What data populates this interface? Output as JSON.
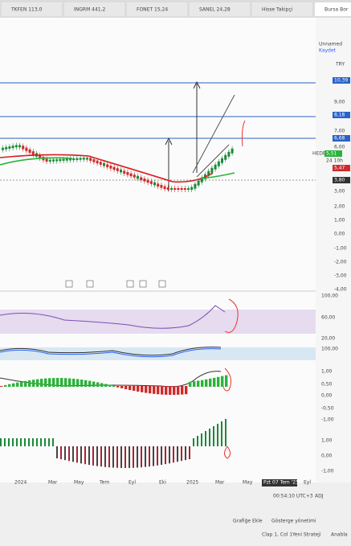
{
  "tabs": [
    "TKFEN 113,0",
    "INGRM 441,2",
    "FONET 15,24",
    "SANEL 24,28",
    "Hisse Takipçi",
    "Bursa Bor"
  ],
  "header": {
    "layout": "Unnamed",
    "save": "Kaydet",
    "currency": "TRY"
  },
  "price_axis": [
    "10,39",
    "9,00",
    "8,18",
    "7,00",
    "6,68",
    "6,00",
    "HEDEF",
    "5,51",
    "24 10h",
    "5,47",
    "3,80",
    "3,00",
    "2,00",
    "1,00",
    "0,00",
    "-1,00",
    "-2,00",
    "-3,00",
    "-4,00"
  ],
  "indicator_axis": [
    "100,00",
    "60,00",
    "20,00",
    "100,00",
    "1,00",
    "0,50",
    "0,00",
    "-0,50",
    "-1,00",
    "1,00",
    "0,00",
    "-1,00"
  ],
  "time_axis": [
    "2024",
    "Mar",
    "May",
    "Tem",
    "Eyl",
    "Eki",
    "2025",
    "Mar",
    "May",
    "Pzt 07 Tem '25",
    "Eyl"
  ],
  "footer": {
    "clock": "00:54:10 UTC+3",
    "adj": "ADJ",
    "add": "Grafiğe Ekle",
    "manage": "Gösterge yönetimi",
    "status": "Clap 1, Col 1",
    "strategy": "Yeni Strateji",
    "side": "Anabla"
  }
}
